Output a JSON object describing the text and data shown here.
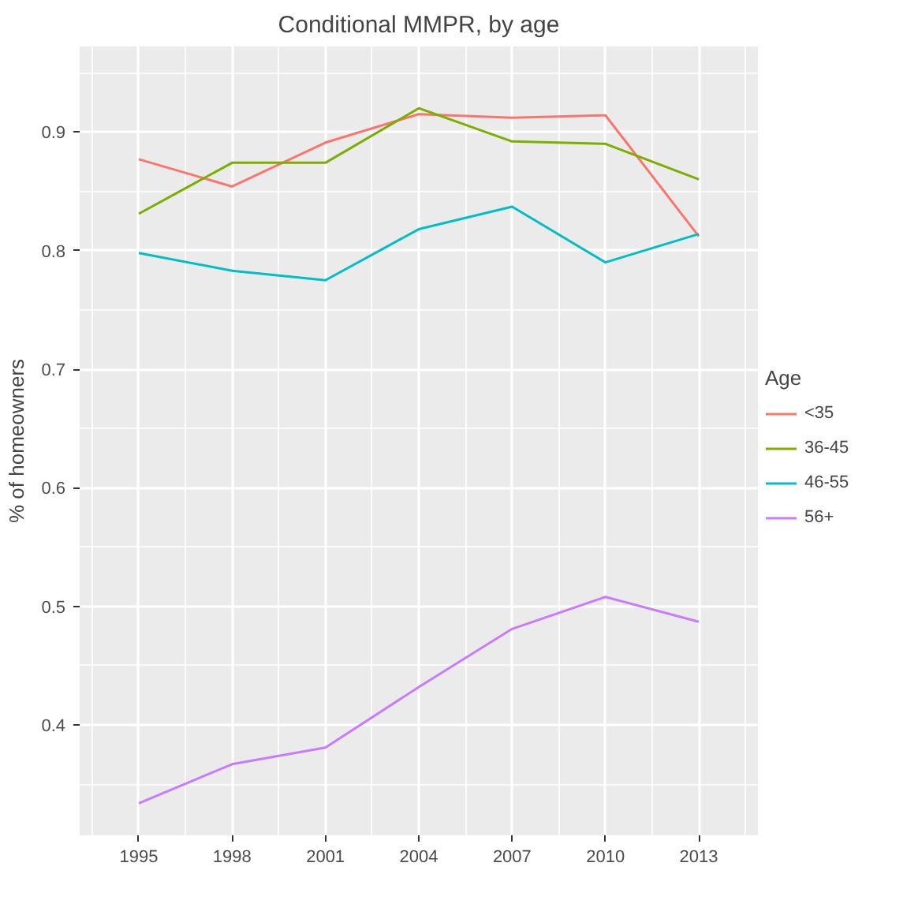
{
  "chart_data": {
    "type": "line",
    "title": "Conditional MMPR, by age",
    "ylabel": "% of homeowners",
    "legend_title": "Age",
    "legend": "right",
    "grid": true,
    "x": [
      1995,
      1998,
      2001,
      2004,
      2007,
      2010,
      2013
    ],
    "xlim": [
      1993.1,
      2014.9
    ],
    "xticks": [
      1995,
      1998,
      2001,
      2004,
      2007,
      2010,
      2013
    ],
    "ylim": [
      0.307,
      0.972
    ],
    "yticks": [
      0.4,
      0.5,
      0.6,
      0.7,
      0.8,
      0.9
    ],
    "series": [
      {
        "name": "<35",
        "color": "#f8766d",
        "values": [
          0.877,
          0.854,
          0.891,
          0.915,
          0.912,
          0.914,
          0.812
        ]
      },
      {
        "name": "36-45",
        "color": "#7cae00",
        "values": [
          0.831,
          0.874,
          0.874,
          0.92,
          0.892,
          0.89,
          0.86
        ]
      },
      {
        "name": "46-55",
        "color": "#00bfc4",
        "values": [
          0.798,
          0.783,
          0.775,
          0.818,
          0.837,
          0.79,
          0.814
        ]
      },
      {
        "name": "56+",
        "color": "#c77cff",
        "values": [
          0.334,
          0.367,
          0.381,
          0.432,
          0.481,
          0.508,
          0.487
        ]
      }
    ]
  }
}
